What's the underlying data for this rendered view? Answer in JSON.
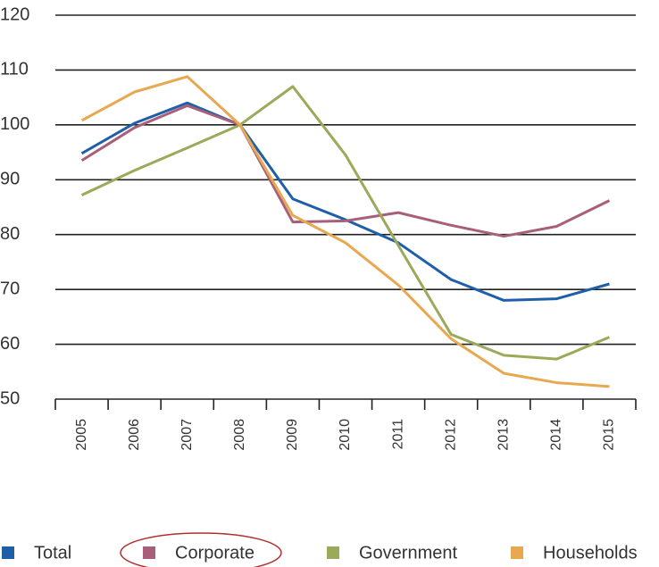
{
  "chart_data": {
    "type": "line",
    "categories": [
      "2005",
      "2006",
      "2007",
      "2008",
      "2009",
      "2010",
      "2011",
      "2012",
      "2013",
      "2014",
      "2015"
    ],
    "series": [
      {
        "name": "Total",
        "color": "#1f5fa8",
        "values": [
          94.8,
          100.3,
          104,
          100,
          86.5,
          82.7,
          78.5,
          71.8,
          68,
          68.3,
          71
        ]
      },
      {
        "name": "Corporate",
        "color": "#a8607a",
        "values": [
          93.5,
          99.5,
          103.5,
          100,
          82.3,
          82.5,
          84,
          81.7,
          79.7,
          81.5,
          86.2
        ]
      },
      {
        "name": "Government",
        "color": "#9aaa5a",
        "values": [
          87.2,
          91.7,
          95.8,
          100,
          107,
          94.5,
          78,
          61.8,
          58,
          57.3,
          61.3
        ]
      },
      {
        "name": "Households",
        "color": "#e8a850",
        "values": [
          100.8,
          106,
          108.8,
          100,
          83.5,
          78.5,
          70.8,
          61,
          54.7,
          53,
          52.3
        ]
      }
    ],
    "ylim": [
      50,
      120
    ],
    "yticks": [
      50,
      60,
      70,
      80,
      90,
      100,
      110,
      120
    ],
    "grid": true
  }
}
